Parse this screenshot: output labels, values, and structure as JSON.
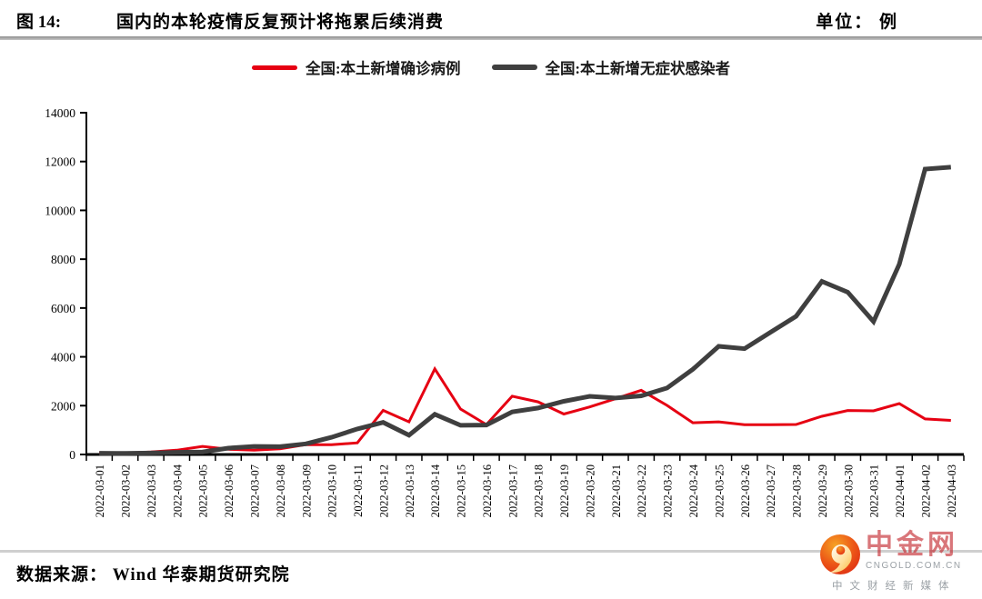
{
  "header": {
    "figure_label": "图 14:",
    "title": "国内的本轮疫情反复预计将拖累后续消费",
    "unit_label": "单位： 例"
  },
  "legend": [
    {
      "label": "全国:本土新增确诊病例",
      "color": "#e60012"
    },
    {
      "label": "全国:本土新增无症状感染者",
      "color": "#3f3f3f"
    }
  ],
  "chart_data": {
    "type": "line",
    "title": "国内的本轮疫情反复预计将拖累后续消费",
    "unit": "例",
    "grid": false,
    "legend_position": "top",
    "ylim": [
      0,
      14000
    ],
    "yticks": [
      0,
      2000,
      4000,
      6000,
      8000,
      10000,
      12000,
      14000
    ],
    "x": [
      "2022-03-01",
      "2022-03-02",
      "2022-03-03",
      "2022-03-04",
      "2022-03-05",
      "2022-03-06",
      "2022-03-07",
      "2022-03-08",
      "2022-03-09",
      "2022-03-10",
      "2022-03-11",
      "2022-03-12",
      "2022-03-13",
      "2022-03-14",
      "2022-03-15",
      "2022-03-16",
      "2022-03-17",
      "2022-03-18",
      "2022-03-19",
      "2022-03-20",
      "2022-03-21",
      "2022-03-22",
      "2022-03-23",
      "2022-03-24",
      "2022-03-25",
      "2022-03-26",
      "2022-03-27",
      "2022-03-28",
      "2022-03-29",
      "2022-03-30",
      "2022-03-31",
      "2022-04-01",
      "2022-04-02",
      "2022-04-03"
    ],
    "series": [
      {
        "name": "全国:本土新增确诊病例",
        "color": "#e60012",
        "values": [
          71,
          54,
          102,
          175,
          330,
          214,
          175,
          233,
          402,
          397,
          476,
          1807,
          1337,
          3507,
          1860,
          1226,
          2388,
          2157,
          1656,
          1947,
          2281,
          2630,
          2010,
          1301,
          1335,
          1217,
          1219,
          1228,
          1565,
          1803,
          1787,
          2086,
          1455,
          1398
        ]
      },
      {
        "name": "全国:本土新增无症状感染者",
        "color": "#3f3f3f",
        "values": [
          51,
          46,
          60,
          89,
          106,
          260,
          330,
          322,
          435,
          703,
          1048,
          1315,
          788,
          1647,
          1194,
          1206,
          1742,
          1904,
          2177,
          2384,
          2313,
          2400,
          2722,
          3489,
          4430,
          4333,
          4996,
          5658,
          7090,
          6651,
          5442,
          7789,
          11691,
          11771
        ]
      }
    ]
  },
  "footer": {
    "source": "数据来源： Wind 华泰期货研究院"
  },
  "logo": {
    "name": "中金网",
    "domain": "CNGOLD.COM.CN",
    "tagline": "中文财经新媒体",
    "brand_red": "#c12228"
  }
}
